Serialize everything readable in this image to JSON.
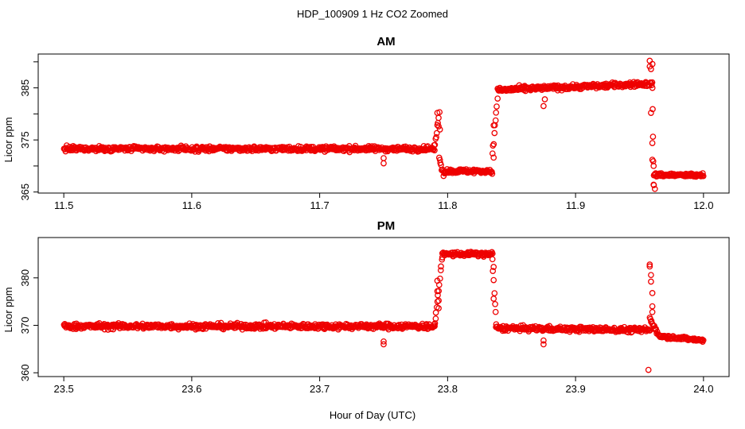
{
  "figure": {
    "title": "HDP_100909  1 Hz CO2 Zoomed",
    "xlabel": "Hour of Day (UTC)"
  },
  "colors": {
    "points": "#ee0000",
    "axes": "#000000",
    "background": "#ffffff"
  },
  "chart_data": [
    {
      "type": "scatter",
      "title": "AM",
      "xlabel": "Hour of Day (UTC)",
      "ylabel": "Licor ppm",
      "xlim": [
        11.48,
        12.02
      ],
      "ylim": [
        364.8,
        391.5
      ],
      "xticks": [
        11.5,
        11.6,
        11.7,
        11.8,
        11.9,
        12.0
      ],
      "xtick_labels": [
        "11.5",
        "11.6",
        "11.7",
        "11.8",
        "11.9",
        "12.0"
      ],
      "yticks": [
        365,
        370,
        375,
        380,
        385,
        390
      ],
      "ytick_labels": [
        "365",
        "",
        "375",
        "",
        "385",
        ""
      ],
      "marker": "open-circle",
      "segments": [
        {
          "x_start": 11.5,
          "x_end": 11.79,
          "y_start": 373.3,
          "y_end": 373.3,
          "noise": 0.45
        },
        {
          "x_start": 11.79,
          "x_end": 11.7935,
          "y_start": 374.0,
          "y_end": 380.0,
          "noise": 0.5
        },
        {
          "x_start": 11.7935,
          "x_end": 11.797,
          "y_start": 372.0,
          "y_end": 368.0,
          "noise": 0.6
        },
        {
          "x_start": 11.797,
          "x_end": 11.835,
          "y_start": 369.0,
          "y_end": 369.0,
          "noise": 0.4
        },
        {
          "x_start": 11.835,
          "x_end": 11.839,
          "y_start": 372.0,
          "y_end": 383.0,
          "noise": 0.5
        },
        {
          "x_start": 11.839,
          "x_end": 11.96,
          "y_start": 384.6,
          "y_end": 385.8,
          "noise": 0.45
        },
        {
          "x_start": 11.96,
          "x_end": 11.961,
          "y_start": 390.0,
          "y_end": 366.0,
          "noise": 0.5
        },
        {
          "x_start": 11.961,
          "x_end": 12.0,
          "y_start": 368.3,
          "y_end": 368.2,
          "noise": 0.35
        }
      ],
      "outliers": [
        {
          "x": 11.75,
          "y": 370.5
        },
        {
          "x": 11.75,
          "y": 371.5
        },
        {
          "x": 11.792,
          "y": 380.2
        },
        {
          "x": 11.793,
          "y": 377.6
        },
        {
          "x": 11.794,
          "y": 377.0
        },
        {
          "x": 11.836,
          "y": 377.8
        },
        {
          "x": 11.836,
          "y": 371.6
        },
        {
          "x": 11.875,
          "y": 381.5
        },
        {
          "x": 11.876,
          "y": 382.8
        },
        {
          "x": 11.958,
          "y": 390.2
        },
        {
          "x": 11.959,
          "y": 388.6
        },
        {
          "x": 11.958,
          "y": 389.1
        },
        {
          "x": 11.959,
          "y": 380.2
        },
        {
          "x": 11.96,
          "y": 374.4
        },
        {
          "x": 11.96,
          "y": 371.2
        },
        {
          "x": 11.961,
          "y": 370.0
        },
        {
          "x": 11.961,
          "y": 366.4
        },
        {
          "x": 11.962,
          "y": 365.6
        }
      ]
    },
    {
      "type": "scatter",
      "title": "PM",
      "xlabel": "Hour of Day (UTC)",
      "ylabel": "Licor ppm",
      "xlim": [
        23.48,
        24.02
      ],
      "ylim": [
        359.2,
        388.5
      ],
      "xticks": [
        23.5,
        23.6,
        23.7,
        23.8,
        23.9,
        24.0
      ],
      "xtick_labels": [
        "23.5",
        "23.6",
        "23.7",
        "23.8",
        "23.9",
        "24.0"
      ],
      "yticks": [
        360,
        370,
        380
      ],
      "ytick_labels": [
        "360",
        "370",
        "380"
      ],
      "marker": "open-circle",
      "segments": [
        {
          "x_start": 23.5,
          "x_end": 23.79,
          "y_start": 369.8,
          "y_end": 369.8,
          "noise": 0.55
        },
        {
          "x_start": 23.79,
          "x_end": 23.796,
          "y_start": 370.0,
          "y_end": 385.0,
          "noise": 0.5
        },
        {
          "x_start": 23.796,
          "x_end": 23.835,
          "y_start": 385.0,
          "y_end": 385.0,
          "noise": 0.45
        },
        {
          "x_start": 23.835,
          "x_end": 23.838,
          "y_start": 384.0,
          "y_end": 370.0,
          "noise": 0.6
        },
        {
          "x_start": 23.838,
          "x_end": 23.958,
          "y_start": 369.4,
          "y_end": 369.0,
          "noise": 0.5
        },
        {
          "x_start": 23.958,
          "x_end": 23.965,
          "y_start": 371.5,
          "y_end": 368.0,
          "noise": 0.5
        },
        {
          "x_start": 23.965,
          "x_end": 24.0,
          "y_start": 367.8,
          "y_end": 366.8,
          "noise": 0.35
        }
      ],
      "outliers": [
        {
          "x": 23.75,
          "y": 366.0
        },
        {
          "x": 23.75,
          "y": 366.6
        },
        {
          "x": 23.792,
          "y": 379.4
        },
        {
          "x": 23.792,
          "y": 377.2
        },
        {
          "x": 23.793,
          "y": 375.2
        },
        {
          "x": 23.793,
          "y": 373.6
        },
        {
          "x": 23.836,
          "y": 375.6
        },
        {
          "x": 23.836,
          "y": 382.3
        },
        {
          "x": 23.875,
          "y": 366.0
        },
        {
          "x": 23.875,
          "y": 366.8
        },
        {
          "x": 23.958,
          "y": 382.8
        },
        {
          "x": 23.958,
          "y": 382.4
        },
        {
          "x": 23.959,
          "y": 380.6
        },
        {
          "x": 23.959,
          "y": 379.2
        },
        {
          "x": 23.96,
          "y": 376.8
        },
        {
          "x": 23.96,
          "y": 374.0
        },
        {
          "x": 23.96,
          "y": 372.8
        },
        {
          "x": 23.957,
          "y": 360.6
        }
      ]
    }
  ]
}
